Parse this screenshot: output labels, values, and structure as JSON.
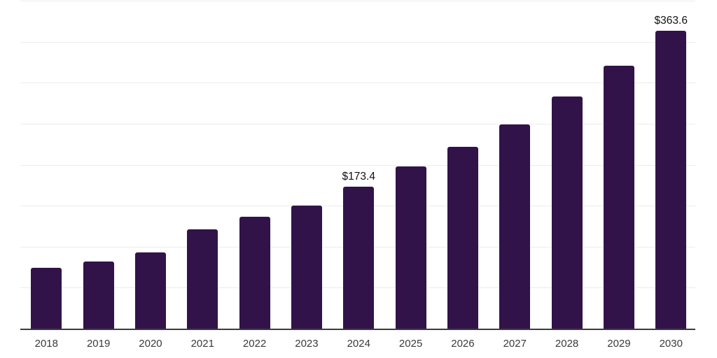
{
  "chart_data": {
    "type": "bar",
    "title": "",
    "xlabel": "",
    "ylabel": "",
    "categories": [
      "2018",
      "2019",
      "2020",
      "2021",
      "2022",
      "2023",
      "2024",
      "2025",
      "2026",
      "2027",
      "2028",
      "2029",
      "2030"
    ],
    "values": [
      73.8,
      82.3,
      92.8,
      120.7,
      136.3,
      150.5,
      173.4,
      198.2,
      221.6,
      249.3,
      282.8,
      320.3,
      363.6
    ],
    "labeled_points": [
      {
        "category": "2024",
        "label": "$173.4"
      },
      {
        "category": "2030",
        "label": "$363.6"
      }
    ],
    "ylim": [
      0,
      400
    ],
    "grid": {
      "orientation": "horizontal",
      "step": 50,
      "lines": 9,
      "y_tick_labels_shown": false
    },
    "legend_position": "none"
  },
  "style": {
    "bar_color": "#321349",
    "axis_color": "#3c3c3c",
    "grid_color": "#ececec",
    "x_tick_label_color": "#3a3a3a",
    "data_label_color": "#111111",
    "background_color": "#ffffff"
  }
}
